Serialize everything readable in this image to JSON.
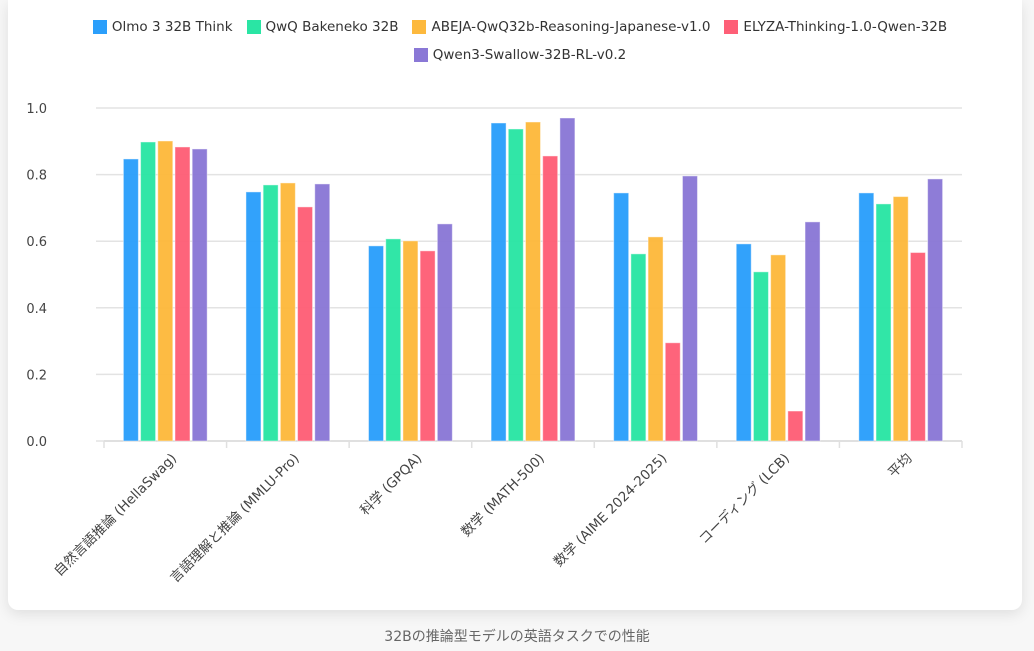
{
  "chart_data": {
    "type": "bar",
    "title": "",
    "caption": "32Bの推論型モデルの英語タスクでの性能",
    "xlabel": "",
    "ylabel": "",
    "ylim": [
      0,
      1.0
    ],
    "yticks": [
      "0.0",
      "0.2",
      "0.4",
      "0.6",
      "0.8",
      "1.0"
    ],
    "ytick_values": [
      0,
      0.2,
      0.4,
      0.6,
      0.8,
      1.0
    ],
    "grid": true,
    "legend_position": "top-center",
    "categories": [
      "自然言語推論 (HellaSwag)",
      "言語理解と推論 (MMLU-Pro)",
      "科学 (GPQA)",
      "数学 (MATH-500)",
      "数学 (AIME 2024-2025)",
      "コーディング (LCB)",
      "平均"
    ],
    "series": [
      {
        "name": "Olmo 3 32B Think",
        "color": "#2b9ffb",
        "values": [
          0.847,
          0.748,
          0.586,
          0.955,
          0.745,
          0.592,
          0.745
        ]
      },
      {
        "name": "QwQ Bakeneko 32B",
        "color": "#2ae5a4",
        "values": [
          0.898,
          0.769,
          0.607,
          0.937,
          0.562,
          0.508,
          0.712
        ]
      },
      {
        "name": "ABEJA-QwQ32b-Reasoning-Japanese-v1.0",
        "color": "#fdb93d",
        "values": [
          0.901,
          0.775,
          0.601,
          0.958,
          0.613,
          0.559,
          0.734
        ]
      },
      {
        "name": "ELYZA-Thinking-1.0-Qwen-32B",
        "color": "#fe5f77",
        "values": [
          0.883,
          0.703,
          0.571,
          0.856,
          0.295,
          0.09,
          0.566
        ]
      },
      {
        "name": "Qwen3-Swallow-32B-RL-v0.2",
        "color": "#8a78d6",
        "values": [
          0.877,
          0.772,
          0.652,
          0.97,
          0.796,
          0.658,
          0.787
        ]
      }
    ]
  }
}
